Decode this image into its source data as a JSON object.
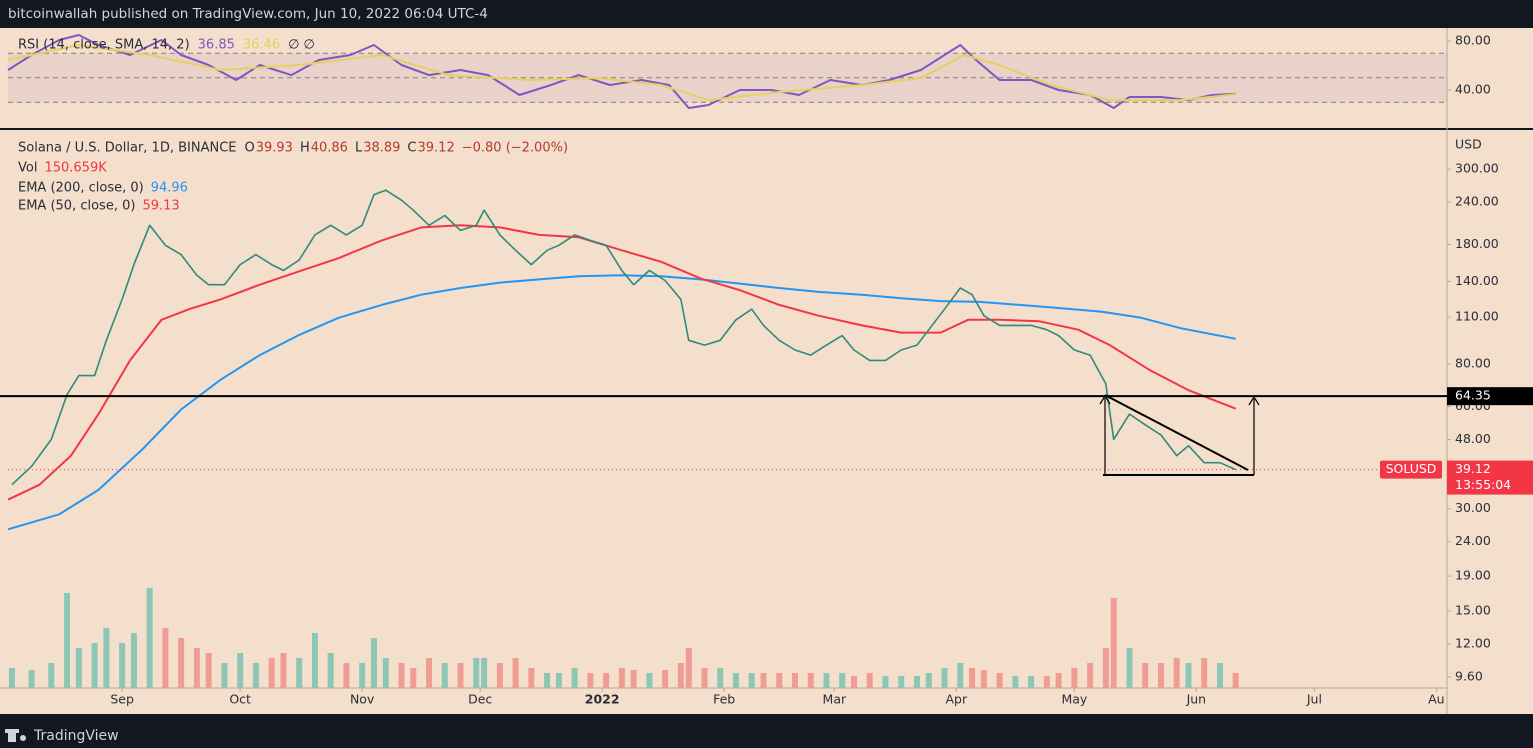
{
  "header": {
    "publisher": "bitcoinwallah published on TradingView.com, Jun 10, 2022 06:04 UTC-4"
  },
  "footer": {
    "brand": "TradingView"
  },
  "chart_data": [
    {
      "type": "line",
      "title": "Solana / U.S. Dollar, 1D, BINANCE",
      "ohlc": [
        {
          "label": "O",
          "value": 39.93
        },
        {
          "label": "H",
          "value": 40.86
        },
        {
          "label": "L",
          "value": 38.89
        },
        {
          "label": "C",
          "value": 39.12
        }
      ],
      "change": "−0.80 (−2.00%)",
      "axis_label": "USD",
      "log_scale": true,
      "grid": false,
      "ylim": [
        8.9,
        391
      ],
      "yticks": [
        {
          "value": 300,
          "label": "300.00"
        },
        {
          "value": 240,
          "label": "240.00"
        },
        {
          "value": 180,
          "label": "180.00"
        },
        {
          "value": 140,
          "label": "140.00"
        },
        {
          "value": 110,
          "label": "110.00"
        },
        {
          "value": 80,
          "label": "80.00"
        },
        {
          "value": 60,
          "label": "60.00"
        },
        {
          "value": 48,
          "label": "48.00"
        },
        {
          "value": 30,
          "label": "30.00"
        },
        {
          "value": 24,
          "label": "24.00"
        },
        {
          "value": 19,
          "label": "19.00"
        },
        {
          "value": 15,
          "label": "15.00"
        },
        {
          "value": 12,
          "label": "12.00"
        },
        {
          "value": 9.6,
          "label": "9.60"
        }
      ],
      "xlim": [
        2,
        367.7
      ],
      "xticks": [
        {
          "value": 31,
          "label": "Sep"
        },
        {
          "value": 61,
          "label": "Oct"
        },
        {
          "value": 92,
          "label": "Nov"
        },
        {
          "value": 122,
          "label": "Dec"
        },
        {
          "value": 153,
          "label": "2022"
        },
        {
          "value": 184,
          "label": "Feb"
        },
        {
          "value": 212,
          "label": "Mar"
        },
        {
          "value": 243,
          "label": "Apr"
        },
        {
          "value": 273,
          "label": "May"
        },
        {
          "value": 304,
          "label": "Jun"
        },
        {
          "value": 334,
          "label": "Jul"
        },
        {
          "value": 365,
          "label": "Au"
        }
      ],
      "series": [
        {
          "name": "SOLUSD",
          "color": "#2f8a7c",
          "x": [
            3,
            8,
            13,
            17,
            20,
            24,
            27,
            31,
            34,
            38,
            42,
            46,
            50,
            53,
            57,
            61,
            65,
            69,
            72,
            76,
            80,
            84,
            88,
            92,
            95,
            98,
            102,
            105,
            109,
            113,
            117,
            121,
            123,
            127,
            131,
            135,
            139,
            142,
            146,
            150,
            154,
            158,
            161,
            165,
            169,
            173,
            175,
            179,
            183,
            187,
            191,
            194,
            198,
            202,
            206,
            210,
            214,
            217,
            221,
            225,
            229,
            233,
            236,
            240,
            244,
            247,
            250,
            254,
            258,
            262,
            266,
            269,
            273,
            277,
            281,
            283,
            287,
            291,
            295,
            299,
            302,
            306,
            310,
            314
          ],
          "values": [
            35.3,
            40,
            48,
            65,
            74,
            74,
            94,
            124,
            157,
            205,
            179,
            168,
            146,
            137,
            137,
            157,
            168,
            157,
            151,
            162,
            192,
            205,
            192,
            205,
            252,
            260,
            243,
            227,
            205,
            219,
            198,
            205,
            227,
            192,
            173,
            157,
            173,
            179,
            192,
            185,
            179,
            151,
            137,
            151,
            141,
            124,
            94,
            91,
            94,
            108,
            116,
            104,
            94,
            88,
            85,
            91,
            97,
            88,
            82,
            82,
            88,
            91,
            101,
            116,
            134,
            128,
            111,
            104,
            104,
            104,
            101,
            97,
            88,
            85,
            70,
            48,
            57,
            53,
            49.5,
            43,
            46,
            41,
            41,
            39.12
          ]
        },
        {
          "name": "EMA (200, close, 0)",
          "color": "#2196f3",
          "x": [
            2,
            15,
            25,
            36,
            46,
            56,
            66,
            76,
            86,
            97,
            107,
            117,
            127,
            137,
            147,
            158,
            168,
            178,
            188,
            198,
            208,
            219,
            229,
            239,
            249,
            259,
            269,
            280,
            290,
            300,
            314
          ],
          "values": [
            26.1,
            28.9,
            34.1,
            44.7,
            58.8,
            71.9,
            85,
            97.5,
            109.5,
            119.5,
            128,
            134,
            139,
            142,
            145,
            146,
            145,
            142,
            138,
            134,
            130.5,
            128,
            125,
            122.6,
            121.9,
            119.5,
            117,
            114,
            109.5,
            102,
            94.96
          ]
        },
        {
          "name": "EMA (50, close, 0)",
          "color": "#f23645",
          "x": [
            2,
            10,
            18,
            25,
            33,
            41,
            48,
            56,
            66,
            76,
            86,
            97,
            107,
            117,
            127,
            137,
            147,
            158,
            168,
            178,
            188,
            198,
            208,
            219,
            229,
            239,
            246,
            254,
            264,
            274,
            282,
            292,
            302,
            314
          ],
          "values": [
            31.9,
            35.3,
            43,
            57,
            82,
            108,
            116,
            124,
            137,
            150,
            164,
            185,
            202,
            205,
            202,
            192,
            189,
            173,
            160,
            143,
            132,
            119.5,
            111,
            104,
            99,
            99,
            108,
            108,
            107,
            101,
            91,
            77,
            67,
            59.13
          ]
        }
      ],
      "volume": {
        "name": "Vol",
        "last_label": "150.659K",
        "ylim": [
          0,
          5580
        ],
        "up_color": "#8cc7b5",
        "down_color": "#ef9c95",
        "values": [
          200,
          180,
          250,
          950,
          400,
          450,
          600,
          450,
          550,
          1000,
          600,
          500,
          400,
          350,
          250,
          350,
          250,
          300,
          350,
          300,
          550,
          350,
          250,
          250,
          500,
          300,
          250,
          200,
          300,
          250,
          250,
          300,
          300,
          250,
          300,
          200,
          150,
          150,
          200,
          150,
          150,
          200,
          180,
          150,
          180,
          250,
          400,
          200,
          200,
          150,
          150,
          150,
          150,
          150,
          150,
          150,
          150,
          120,
          150,
          120,
          120,
          120,
          150,
          200,
          250,
          200,
          180,
          150,
          120,
          120,
          120,
          150,
          200,
          250,
          400,
          900,
          400,
          250,
          250,
          300,
          250,
          300,
          250,
          150.659
        ]
      },
      "price_line": {
        "value": 64.35,
        "color": "#000000"
      },
      "countdown": "13:55:04"
    },
    {
      "type": "line",
      "title": "RSI (14, close, SMA, 14, 2)",
      "flags": "∅ ∅",
      "ylim": [
        9,
        90.6
      ],
      "yticks": [
        {
          "value": 80,
          "label": "80.00"
        },
        {
          "value": 40,
          "label": "40.00"
        }
      ],
      "bands": [
        70,
        50,
        30
      ],
      "xlim": [
        2,
        367.7
      ],
      "series": [
        {
          "color": "#7e57c2",
          "x": [
            2,
            8,
            15,
            20,
            25,
            33,
            41,
            46,
            53,
            60,
            66,
            74,
            81,
            89,
            95,
            102,
            109,
            117,
            124,
            132,
            140,
            147,
            155,
            163,
            170,
            175,
            180,
            188,
            196,
            203,
            211,
            219,
            226,
            234,
            240,
            244,
            248,
            254,
            262,
            269,
            277,
            283,
            287,
            295,
            302,
            308,
            314
          ],
          "values": [
            56.3,
            68.6,
            80.8,
            84.9,
            76.7,
            68.6,
            80.8,
            68.6,
            60.4,
            48.2,
            60.4,
            52.2,
            64.5,
            68.6,
            76.7,
            60.4,
            52.2,
            56.3,
            52.2,
            35.9,
            44.1,
            52.2,
            44.1,
            48.2,
            44.1,
            25.3,
            27.8,
            40,
            40,
            35.9,
            48.2,
            44.1,
            48.2,
            56.3,
            68.6,
            76.7,
            64.5,
            48.2,
            48.2,
            40,
            35.9,
            25.3,
            34.3,
            34.3,
            31.8,
            35.9,
            36.85
          ]
        },
        {
          "color": "#e8cf62",
          "x": [
            2,
            20,
            38,
            56,
            76,
            97,
            114,
            135,
            152,
            168,
            180,
            198,
            219,
            234,
            245,
            254,
            267,
            282,
            300,
            314
          ],
          "values": [
            64.5,
            76.7,
            68.6,
            56.3,
            60.4,
            68.6,
            52.2,
            48.2,
            49.8,
            44.1,
            31.8,
            38.4,
            44.1,
            49.8,
            68.6,
            60.4,
            44.1,
            31.8,
            31.8,
            36.46
          ]
        }
      ]
    }
  ]
}
